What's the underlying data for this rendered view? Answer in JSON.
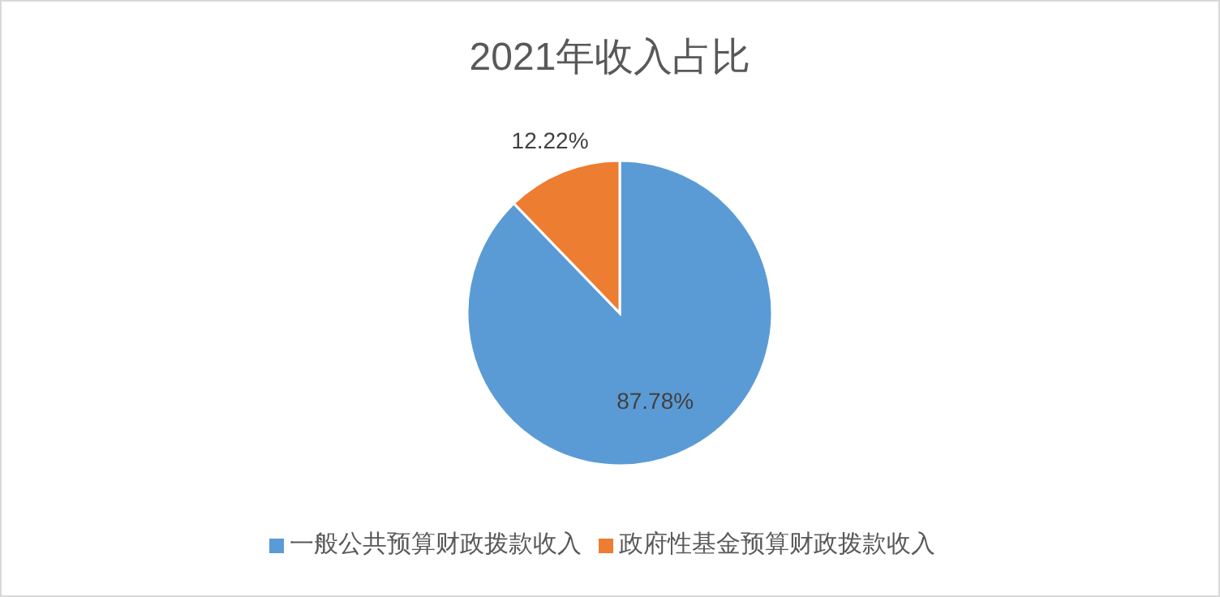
{
  "chart_data": {
    "type": "pie",
    "title": "2021年收入占比",
    "categories": [
      "一般公共预算财政拨款收入",
      "政府性基金预算财政拨款收入"
    ],
    "values": [
      87.78,
      12.22
    ],
    "colors": [
      "#5b9bd5",
      "#ed7d31"
    ],
    "value_labels": [
      "87.78%",
      "12.22%"
    ],
    "legend": "bottom"
  }
}
